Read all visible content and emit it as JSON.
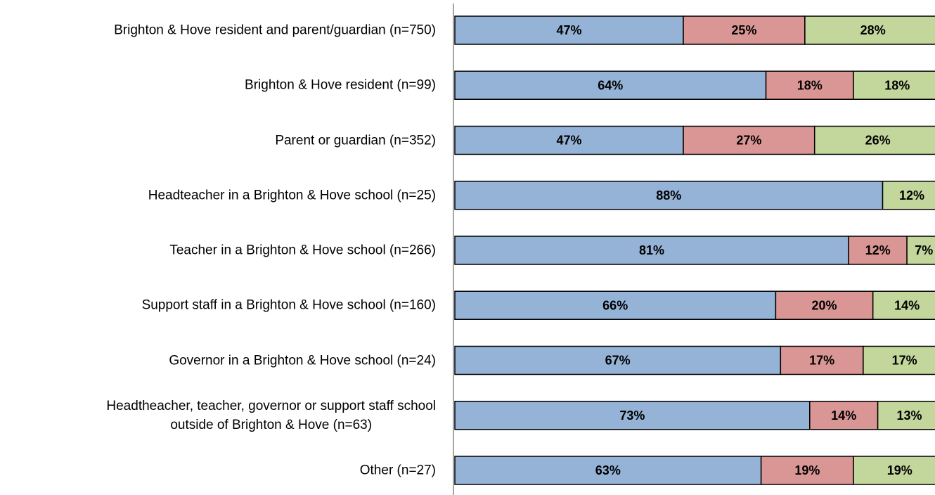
{
  "chart_data": {
    "type": "stacked_bar_horizontal",
    "categories": [
      "Brighton & Hove resident and parent/guardian (n=750)",
      "Brighton & Hove resident (n=99)",
      "Parent or guardian (n=352)",
      "Headteacher in a Brighton & Hove school (n=25)",
      "Teacher in a Brighton & Hove school (n=266)",
      "Support staff in a Brighton & Hove school (n=160)",
      "Governor in a Brighton & Hove school (n=24)",
      "Headtheacher, teacher, governor or support staff school\noutside of Brighton & Hove (n=63)",
      "Other (n=27)"
    ],
    "series": [
      {
        "color": "#95b3d7",
        "values": [
          47,
          64,
          47,
          88,
          81,
          66,
          67,
          73,
          63
        ],
        "value_labels": [
          "47%",
          "64%",
          "47%",
          "88%",
          "81%",
          "66%",
          "67%",
          "73%",
          "63%"
        ]
      },
      {
        "color": "#d99694",
        "values": [
          25,
          18,
          27,
          0,
          12,
          20,
          17,
          14,
          19
        ],
        "value_labels": [
          "25%",
          "18%",
          "27%",
          null,
          "12%",
          "20%",
          "17%",
          "14%",
          "19%"
        ]
      },
      {
        "color": "#c3d69b",
        "values": [
          28,
          18,
          26,
          12,
          7,
          14,
          17,
          13,
          19
        ],
        "value_labels": [
          "28%",
          "18%",
          "26%",
          "12%",
          "7%",
          "14%",
          "17%",
          "13%",
          "19%"
        ]
      }
    ],
    "xlim": [
      0,
      100
    ]
  }
}
